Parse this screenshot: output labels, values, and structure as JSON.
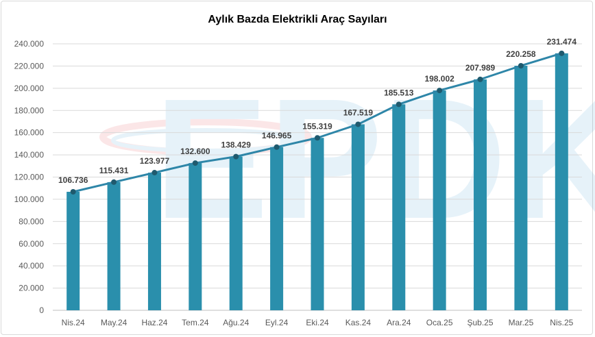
{
  "chart_data": {
    "type": "bar",
    "title": "Aylık Bazda Elektrikli Araç Sayıları",
    "categories": [
      "Nis.24",
      "May.24",
      "Haz.24",
      "Tem.24",
      "Ağu.24",
      "Eyl.24",
      "Eki.24",
      "Kas.24",
      "Ara.24",
      "Oca.25",
      "Şub.25",
      "Mar.25",
      "Nis.25"
    ],
    "values": [
      106736,
      115431,
      123977,
      132600,
      138429,
      146965,
      155319,
      167519,
      185513,
      198002,
      207989,
      220258,
      231474
    ],
    "value_labels": [
      "106.736",
      "115.431",
      "123.977",
      "132.600",
      "138.429",
      "146.965",
      "155.319",
      "167.519",
      "185.513",
      "198.002",
      "207.989",
      "220.258",
      "231.474"
    ],
    "overlay": "line with markers at same values",
    "ylim": [
      0,
      240000
    ],
    "y_ticks": [
      "0",
      "20.000",
      "40.000",
      "60.000",
      "80.000",
      "100.000",
      "120.000",
      "140.000",
      "160.000",
      "180.000",
      "200.000",
      "220.000",
      "240.000"
    ],
    "xlabel": "",
    "ylabel": "",
    "grid": true,
    "legend": "none",
    "colors": {
      "bar": "#2a8fac",
      "line": "#2e86a8",
      "marker": "#1f5a6e",
      "gridline": "#d9d9d9"
    },
    "watermark": "EPDK"
  }
}
